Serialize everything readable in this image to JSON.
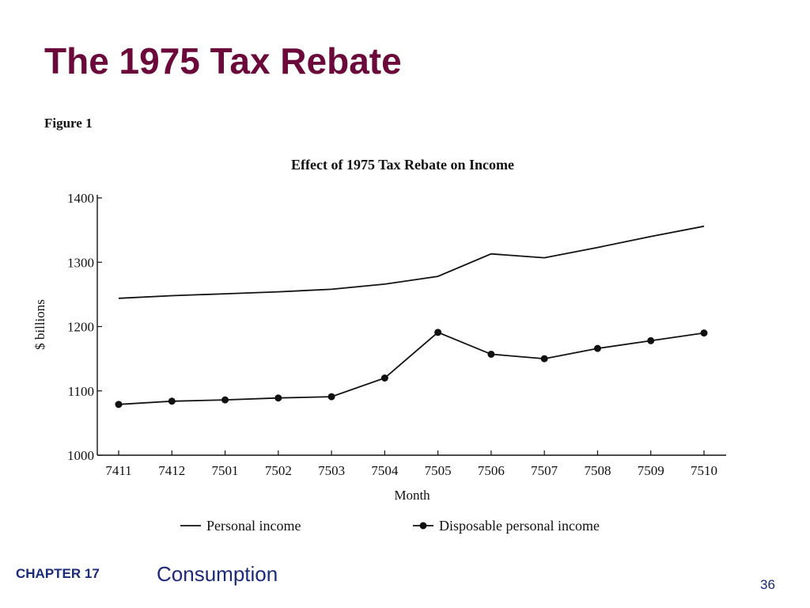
{
  "slide": {
    "title": "The 1975 Tax Rebate",
    "figure_label": "Figure 1",
    "footer_chapter": "CHAPTER 17",
    "footer_topic": "Consumption",
    "page_number": "36"
  },
  "colors": {
    "title": "#6b0a3a",
    "footer": "#1b2a7a",
    "ink": "#111111"
  },
  "chart_data": {
    "type": "line",
    "title": "Effect of 1975 Tax Rebate on Income",
    "xlabel": "Month",
    "ylabel": "$ billions",
    "categories": [
      "7411",
      "7412",
      "7501",
      "7502",
      "7503",
      "7504",
      "7505",
      "7506",
      "7507",
      "7508",
      "7509",
      "7510"
    ],
    "ylim": [
      1000,
      1400
    ],
    "yticks": [
      1000,
      1100,
      1200,
      1300,
      1400
    ],
    "grid": false,
    "legend_position": "bottom",
    "series": [
      {
        "name": "Personal income",
        "marker": "none",
        "values": [
          1244,
          1248,
          1251,
          1254,
          1258,
          1266,
          1278,
          1313,
          1307,
          1323,
          1340,
          1356
        ]
      },
      {
        "name": "Disposable personal income",
        "marker": "circle",
        "values": [
          1079,
          1084,
          1086,
          1089,
          1091,
          1120,
          1191,
          1157,
          1150,
          1166,
          1178,
          1190
        ]
      }
    ]
  }
}
